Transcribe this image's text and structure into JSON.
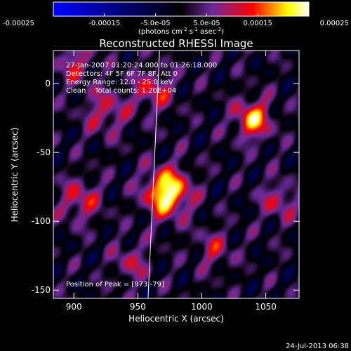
{
  "chart_data": {
    "type": "heatmap",
    "title": "Reconstructed RHESSI Image",
    "xlabel": "Heliocentric X (arcsec)",
    "ylabel": "Heliocentric Y (arcsec)",
    "xlim": [
      884,
      1076
    ],
    "ylim": [
      -156,
      24
    ],
    "x_ticks": [
      "900",
      "950",
      "1000",
      "1050"
    ],
    "y_ticks": [
      "0",
      "-50",
      "-100",
      "-150"
    ],
    "colorbar": {
      "range": [
        -0.00025,
        0.00025
      ],
      "tick_labels": [
        "-0.00025",
        "-0.00015",
        "-5.0e-05",
        "5.0e-05",
        "0.00015",
        "0.00025"
      ],
      "label_main": "(photons cm",
      "label_exp1": "-2",
      "label_mid1": " s",
      "label_exp2": "-1",
      "label_mid2": " asec",
      "label_exp3": "-2",
      "label_end": ")",
      "colors": [
        "#0000ff",
        "#000000",
        "#6a2a9a",
        "#ff0000",
        "#ffff00",
        "#ffffff"
      ]
    },
    "annotations": [
      "27-Jan-2007 01:20:24.000 to 01:26:18.000",
      "Detectors: 4F 5F 6F 7F 8F, Att 0",
      "Energy Range: 12.0 - 25.0 keV",
      "Clean    Total counts: 1.20E+04"
    ],
    "peak_label": "Position of Peak = [973,-79]",
    "peak": {
      "x": 973,
      "y": -79
    },
    "sources": [
      {
        "x": 973,
        "y": -79,
        "amp": 1.0,
        "w": 12
      },
      {
        "x": 1040,
        "y": -26,
        "amp": 0.75,
        "w": 10
      },
      {
        "x": 962,
        "y": -5,
        "amp": 0.45,
        "w": 11
      },
      {
        "x": 925,
        "y": -20,
        "amp": 0.4,
        "w": 12
      },
      {
        "x": 905,
        "y": -85,
        "amp": 0.45,
        "w": 11
      },
      {
        "x": 900,
        "y": 15,
        "amp": 0.4,
        "w": 10
      },
      {
        "x": 1010,
        "y": -120,
        "amp": 0.35,
        "w": 10
      },
      {
        "x": 1060,
        "y": -85,
        "amp": 0.4,
        "w": 10
      },
      {
        "x": 945,
        "y": -130,
        "amp": 0.35,
        "w": 10
      }
    ],
    "limb_line": [
      [
        967,
        24
      ],
      [
        958,
        -156
      ]
    ]
  },
  "footer": {
    "date": "24-Jul-2013 06:38"
  }
}
